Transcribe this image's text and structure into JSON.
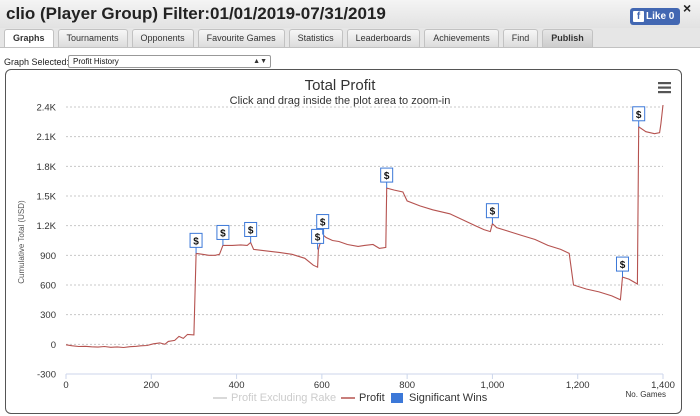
{
  "window": {
    "title": "clio (Player Group) Filter:01/01/2019-07/31/2019",
    "like_label": "Like",
    "like_count": "0",
    "close_label": "×"
  },
  "tabs": [
    {
      "label": "Graphs",
      "active": true
    },
    {
      "label": "Tournaments"
    },
    {
      "label": "Opponents"
    },
    {
      "label": "Favourite Games"
    },
    {
      "label": "Statistics"
    },
    {
      "label": "Leaderboards"
    },
    {
      "label": "Achievements"
    },
    {
      "label": "Find"
    },
    {
      "label": "Publish"
    }
  ],
  "graph_selector": {
    "label": "Graph Selected:",
    "value": "Profit History"
  },
  "chart_data": {
    "type": "line",
    "title": "Total Profit",
    "subtitle": "Click and drag inside the plot area to zoom-in",
    "ylabel": "Cumulative Total (USD)",
    "xlabel": "No. Games",
    "xlim": [
      0,
      1400
    ],
    "ylim": [
      -300,
      2400
    ],
    "x_ticks": [
      0,
      200,
      400,
      600,
      800,
      1000,
      1200,
      1400
    ],
    "x_tick_labels": [
      "0",
      "200",
      "400",
      "600",
      "800",
      "1,000",
      "1,200",
      "1,400"
    ],
    "y_ticks": [
      -300,
      0,
      300,
      600,
      900,
      1200,
      1500,
      1800,
      2100,
      2400
    ],
    "y_tick_labels": [
      "-300",
      "0",
      "300",
      "600",
      "900",
      "1.2K",
      "1.5K",
      "1.8K",
      "2.1K",
      "2.4K"
    ],
    "grid": "horizontal dotted",
    "series": [
      {
        "name": "Profit",
        "color": "#b5524f",
        "points": [
          [
            0,
            -5
          ],
          [
            15,
            -15
          ],
          [
            30,
            -22
          ],
          [
            45,
            -20
          ],
          [
            60,
            -25
          ],
          [
            75,
            -28
          ],
          [
            90,
            -22
          ],
          [
            105,
            -30
          ],
          [
            120,
            -26
          ],
          [
            135,
            -32
          ],
          [
            150,
            -24
          ],
          [
            165,
            -20
          ],
          [
            175,
            -15
          ],
          [
            190,
            -12
          ],
          [
            205,
            5
          ],
          [
            220,
            15
          ],
          [
            232,
            0
          ],
          [
            240,
            30
          ],
          [
            255,
            40
          ],
          [
            265,
            80
          ],
          [
            275,
            60
          ],
          [
            285,
            100
          ],
          [
            300,
            95
          ],
          [
            305,
            920
          ],
          [
            320,
            910
          ],
          [
            335,
            900
          ],
          [
            350,
            900
          ],
          [
            360,
            910
          ],
          [
            368,
            1000
          ],
          [
            390,
            1000
          ],
          [
            410,
            1005
          ],
          [
            425,
            1000
          ],
          [
            433,
            1030
          ],
          [
            440,
            960
          ],
          [
            470,
            945
          ],
          [
            500,
            930
          ],
          [
            530,
            910
          ],
          [
            560,
            870
          ],
          [
            580,
            800
          ],
          [
            590,
            780
          ],
          [
            592,
            960
          ],
          [
            602,
            1110
          ],
          [
            610,
            1080
          ],
          [
            625,
            1050
          ],
          [
            640,
            1040
          ],
          [
            660,
            1010
          ],
          [
            685,
            990
          ],
          [
            700,
            1000
          ],
          [
            720,
            1010
          ],
          [
            735,
            970
          ],
          [
            750,
            980
          ],
          [
            752,
            1580
          ],
          [
            770,
            1560
          ],
          [
            790,
            1540
          ],
          [
            800,
            1450
          ],
          [
            830,
            1400
          ],
          [
            860,
            1360
          ],
          [
            900,
            1320
          ],
          [
            930,
            1260
          ],
          [
            960,
            1200
          ],
          [
            980,
            1160
          ],
          [
            995,
            1140
          ],
          [
            1000,
            1220
          ],
          [
            1010,
            1180
          ],
          [
            1040,
            1140
          ],
          [
            1070,
            1100
          ],
          [
            1100,
            1060
          ],
          [
            1130,
            1000
          ],
          [
            1160,
            960
          ],
          [
            1180,
            920
          ],
          [
            1190,
            600
          ],
          [
            1220,
            560
          ],
          [
            1250,
            530
          ],
          [
            1280,
            490
          ],
          [
            1300,
            450
          ],
          [
            1305,
            680
          ],
          [
            1320,
            660
          ],
          [
            1340,
            610
          ],
          [
            1343,
            2200
          ],
          [
            1360,
            2150
          ],
          [
            1380,
            2130
          ],
          [
            1392,
            2140
          ],
          [
            1395,
            2230
          ],
          [
            1400,
            2420
          ]
        ]
      }
    ],
    "significant_wins": [
      {
        "x": 305,
        "y": 920
      },
      {
        "x": 368,
        "y": 1000
      },
      {
        "x": 433,
        "y": 1030
      },
      {
        "x": 590,
        "y": 960
      },
      {
        "x": 602,
        "y": 1110
      },
      {
        "x": 752,
        "y": 1580
      },
      {
        "x": 1000,
        "y": 1220
      },
      {
        "x": 1305,
        "y": 680
      },
      {
        "x": 1343,
        "y": 2200
      }
    ],
    "significant_win_label": "$",
    "legend": {
      "placement": "bottom-center",
      "items": [
        {
          "label": "Profit Excluding Rake",
          "color": "#cccccc",
          "kind": "line",
          "hidden": true
        },
        {
          "label": "Profit",
          "color": "#b5524f",
          "kind": "line"
        },
        {
          "label": "Significant Wins",
          "color": "#3c78d8",
          "kind": "box"
        }
      ]
    }
  },
  "colors": {
    "accent": "#4267b2",
    "profit_line": "#b5524f",
    "significant_wins": "#3c78d8",
    "grid": "#c8c8c8"
  },
  "icons": {
    "menu": "hamburger-menu-icon",
    "facebook": "facebook-like-icon",
    "close": "close-icon"
  }
}
